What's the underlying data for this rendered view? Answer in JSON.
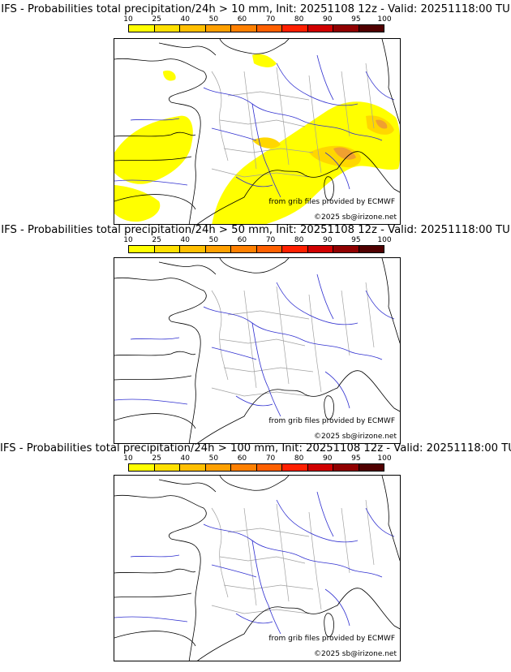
{
  "colorbar": {
    "ticks": [
      "10",
      "25",
      "40",
      "50",
      "60",
      "70",
      "80",
      "90",
      "95",
      "100"
    ],
    "colors": [
      "#ffff00",
      "#ffe000",
      "#ffbf00",
      "#ffa000",
      "#ff8000",
      "#ff6000",
      "#ff2000",
      "#d00000",
      "#900000",
      "#500000"
    ]
  },
  "credits": {
    "source": "from grib files provided by ECMWF",
    "copyright": "©2025 sb@irizone.net"
  },
  "panels": [
    {
      "title": "IFS - Probabilities total precipitation/24h > 10 mm, Init: 20251108 12z - Valid: 20251118:00 TU",
      "has_shading": true
    },
    {
      "title": "IFS - Probabilities total precipitation/24h > 50 mm, Init: 20251108 12z - Valid: 20251118:00 TU",
      "has_shading": false
    },
    {
      "title": "IFS - Probabilities total precipitation/24h > 100 mm, Init: 20251108 12z - Valid: 20251118:00 TU",
      "has_shading": false
    }
  ],
  "map_colors": {
    "coast": "#000000",
    "rivers": "#3030d0",
    "admin": "#a0a0a0",
    "precip_low": "#ffff00",
    "precip_mid": "#ffd700",
    "precip_high": "#f0a030"
  }
}
